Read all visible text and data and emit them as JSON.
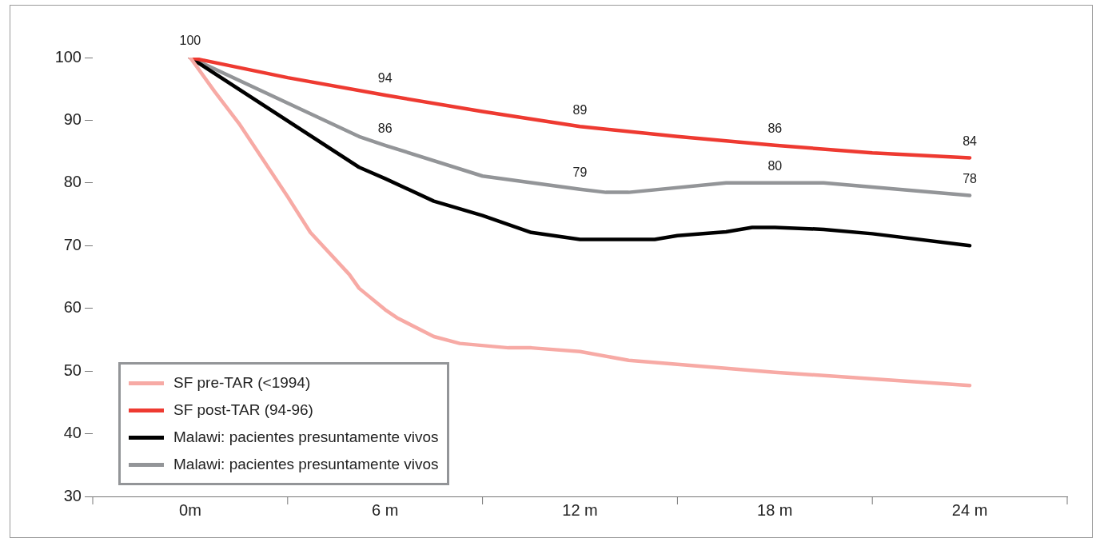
{
  "chart_data": {
    "type": "line",
    "xlim": [
      -3,
      27
    ],
    "xticks": [
      {
        "value": -3,
        "label": null
      },
      {
        "value": 0,
        "label": "0m"
      },
      {
        "value": 3,
        "label": null
      },
      {
        "value": 6,
        "label": "6 m"
      },
      {
        "value": 9,
        "label": null
      },
      {
        "value": 12,
        "label": "12 m"
      },
      {
        "value": 15,
        "label": null
      },
      {
        "value": 18,
        "label": "18 m"
      },
      {
        "value": 21,
        "label": null
      },
      {
        "value": 24,
        "label": "24 m"
      },
      {
        "value": 27,
        "label": null
      }
    ],
    "ylim": [
      30,
      100
    ],
    "yticks": [
      30,
      40,
      50,
      60,
      70,
      80,
      90,
      100
    ],
    "grid": false,
    "legend": "bottom left",
    "marker": "none",
    "line_style": "solid",
    "series": [
      {
        "name": "SF pre-TAR (<1994)",
        "color": "#f7aaa5",
        "x": [
          0,
          0.75,
          1.5,
          3,
          3.7,
          4.9,
          5.2,
          6,
          6.4,
          7.5,
          8.3,
          9.8,
          10.5,
          12,
          13.5,
          18,
          24
        ],
        "values": [
          100,
          94.6,
          89.5,
          77.8,
          72.1,
          65.4,
          63.2,
          59.8,
          58.4,
          55.5,
          54.4,
          53.7,
          53.7,
          53.1,
          51.7,
          49.8,
          47.7
        ]
      },
      {
        "name": "SF post-TAR (94-96)",
        "color": "#ee3a31",
        "x": [
          0,
          3,
          6,
          9,
          12,
          15,
          18,
          21,
          24
        ],
        "values": [
          100,
          96.8,
          94,
          91.4,
          89,
          87.4,
          86,
          84.8,
          84
        ],
        "value_labels": [
          "100",
          null,
          "94",
          null,
          "89",
          null,
          "86",
          null,
          "84"
        ]
      },
      {
        "name": "Malawi: pacientes presuntamente vivos",
        "color": "#000000",
        "x": [
          0,
          5.2,
          6,
          7.5,
          9,
          10.5,
          12,
          14.3,
          15,
          16.5,
          17.3,
          18,
          19.5,
          21,
          24
        ],
        "values": [
          100,
          82.5,
          80.7,
          77.1,
          74.8,
          72.1,
          71,
          71,
          71.6,
          72.2,
          72.9,
          72.9,
          72.6,
          71.9,
          70
        ]
      },
      {
        "name": "Malawi: pacientes presuntamente vivos",
        "color": "#939598",
        "x": [
          0,
          5.2,
          6,
          9,
          12,
          12.8,
          13.5,
          16.5,
          18,
          19.5,
          24
        ],
        "values": [
          100,
          87.4,
          86,
          81.1,
          79,
          78.5,
          78.5,
          80,
          80,
          80,
          78
        ],
        "value_labels": [
          null,
          null,
          "86",
          null,
          "79",
          null,
          null,
          null,
          "80",
          null,
          "78"
        ]
      }
    ]
  }
}
